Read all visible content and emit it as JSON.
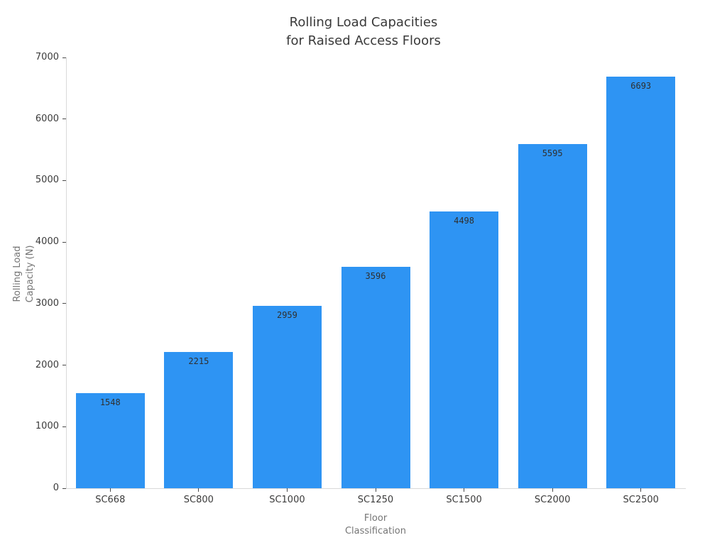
{
  "title": {
    "line1": "Rolling Load Capacities",
    "line2": "for Raised Access Floors"
  },
  "axes": {
    "x_title_line1": "Floor",
    "x_title_line2": "Classification",
    "y_title_line1": "Rolling Load",
    "y_title_line2": "Capacity (N)"
  },
  "chart_data": {
    "type": "bar",
    "title": "Rolling Load Capacities for Raised Access Floors",
    "categories": [
      "SC668",
      "SC800",
      "SC1000",
      "SC1250",
      "SC1500",
      "SC2000",
      "SC2500"
    ],
    "values": [
      1548,
      2215,
      2959,
      3596,
      4498,
      5595,
      6693
    ],
    "value_labels": [
      "1548",
      "2215",
      "2959",
      "3596",
      "4498",
      "5595",
      "6693"
    ],
    "xlabel": "Floor Classification",
    "ylabel": "Rolling Load Capacity (N)",
    "ylim": [
      0,
      7000
    ],
    "yticks": [
      0,
      1000,
      2000,
      3000,
      4000,
      5000,
      6000,
      7000
    ],
    "grid": false,
    "legend_position": "none",
    "bar_color": "#2e94f3",
    "spine_color": "#d9d9d9",
    "tick_color": "#4a4a4a",
    "tick_label_color": "#3b3b3b",
    "axis_title_color": "#757575",
    "title_color": "#3a3a3a",
    "background_color": "#ffffff"
  }
}
